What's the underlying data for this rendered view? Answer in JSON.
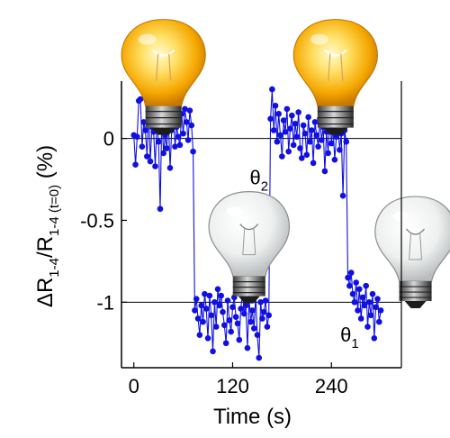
{
  "chart_data": {
    "type": "line",
    "title": "",
    "xlabel": "Time (s)",
    "ylabel": {
      "main": "ΔR",
      "sub1": "1-4",
      "slash": "/R",
      "sub2": "1-4 (t=0)",
      "unit": "(%)"
    },
    "xlim": [
      -15,
      325
    ],
    "ylim": [
      -1.4,
      0.35
    ],
    "xticks": [
      0,
      120,
      240
    ],
    "xtick_labels": [
      "0",
      "120",
      "240"
    ],
    "yticks": [
      0,
      -0.5,
      -1
    ],
    "ytick_labels": [
      "0",
      "-0.5",
      "-1"
    ],
    "reference_lines": [
      0,
      -1
    ],
    "grid": false,
    "legend": "none",
    "series": [
      {
        "color": "#1010e0",
        "marker": "circle",
        "x": [
          0,
          2,
          4,
          6,
          8,
          10,
          12,
          14,
          16,
          18,
          20,
          22,
          24,
          26,
          28,
          30,
          32,
          34,
          36,
          38,
          40,
          42,
          44,
          46,
          48,
          50,
          52,
          54,
          56,
          58,
          60,
          62,
          64,
          66,
          68,
          70,
          72,
          74,
          76,
          78,
          80,
          82,
          84,
          86,
          88,
          90,
          92,
          94,
          96,
          98,
          100,
          102,
          104,
          106,
          108,
          110,
          112,
          114,
          116,
          118,
          120,
          122,
          124,
          126,
          128,
          130,
          132,
          134,
          136,
          138,
          140,
          142,
          144,
          146,
          148,
          150,
          152,
          154,
          156,
          158,
          160,
          162,
          164,
          166,
          168,
          170,
          172,
          174,
          176,
          178,
          180,
          182,
          184,
          186,
          188,
          190,
          192,
          194,
          196,
          198,
          200,
          202,
          204,
          206,
          208,
          210,
          212,
          214,
          216,
          218,
          220,
          222,
          224,
          226,
          228,
          230,
          232,
          234,
          236,
          238,
          240,
          242,
          244,
          246,
          248,
          250,
          252,
          254,
          256,
          258,
          260,
          262,
          264,
          266,
          268,
          270,
          272,
          274,
          276,
          278,
          280,
          282,
          284,
          286,
          288,
          290,
          292,
          294,
          296,
          298,
          300
        ],
        "y": [
          0.02,
          -0.16,
          0.01,
          0.23,
          0.24,
          -0.05,
          0.1,
          0.05,
          -0.11,
          0.18,
          -0.14,
          0.07,
          0.04,
          -0.17,
          0.09,
          -0.02,
          -0.43,
          0.14,
          -0.09,
          0.02,
          -0.06,
          0.12,
          -0.18,
          0.05,
          0.16,
          -0.05,
          0.07,
          0.01,
          -0.04,
          0.15,
          0.03,
          0.18,
          0.1,
          -0.01,
          0.17,
          0.08,
          -0.08,
          -1.05,
          -0.98,
          -1.1,
          -1.2,
          -1.02,
          -1.12,
          -0.95,
          -1.04,
          -1.22,
          -0.96,
          -1.08,
          -1.3,
          -1.0,
          -1.15,
          -0.92,
          -1.02,
          -0.96,
          -1.06,
          -1.14,
          -1.25,
          -0.99,
          -1.11,
          -1.18,
          -1.03,
          -0.97,
          -1.09,
          -1.13,
          -1.23,
          -1.04,
          -0.94,
          -1.07,
          -1.02,
          -1.28,
          -0.98,
          -1.12,
          -1.05,
          -1.16,
          -0.96,
          -1.2,
          -1.34,
          -1.0,
          -1.1,
          -1.06,
          -0.99,
          -1.15,
          -1.08,
          0.12,
          0.3,
          0.05,
          0.2,
          -0.02,
          0.15,
          0.02,
          -0.11,
          0.11,
          0.04,
          0.18,
          -0.08,
          0.06,
          0.14,
          -0.04,
          0.09,
          0.01,
          0.16,
          -0.06,
          -0.12,
          0.08,
          0.03,
          -0.1,
          0.13,
          -0.02,
          0.05,
          -0.15,
          0.1,
          0.02,
          -0.05,
          0.12,
          -0.01,
          0.07,
          -0.2,
          0.04,
          -0.09,
          0.15,
          -0.03,
          0.06,
          -0.13,
          0.01,
          0.09,
          -0.07,
          0.03,
          -0.35,
          0.05,
          -0.02,
          -0.85,
          -0.9,
          -0.82,
          -0.95,
          -1.0,
          -0.88,
          -1.05,
          -0.92,
          -1.1,
          -0.97,
          -1.02,
          -0.9,
          -1.15,
          -1.0,
          -1.08,
          -0.95,
          -1.22,
          -1.03,
          -0.98,
          -1.12,
          -1.05
        ]
      }
    ],
    "annotations": [
      {
        "text": "θ",
        "sub": "2",
        "x": 152,
        "y": -0.28
      },
      {
        "text": "θ",
        "sub": "1",
        "x": 262,
        "y": -1.24
      }
    ],
    "pictures": [
      {
        "icon": "lit-bulb-icon",
        "x": 36,
        "y": 0.22
      },
      {
        "icon": "lit-bulb-icon",
        "x": 245,
        "y": 0.22
      },
      {
        "icon": "unlit-bulb-icon",
        "x": 140,
        "y": -0.82
      },
      {
        "icon": "unlit-bulb-icon",
        "x": 342,
        "y": -0.85
      }
    ]
  }
}
